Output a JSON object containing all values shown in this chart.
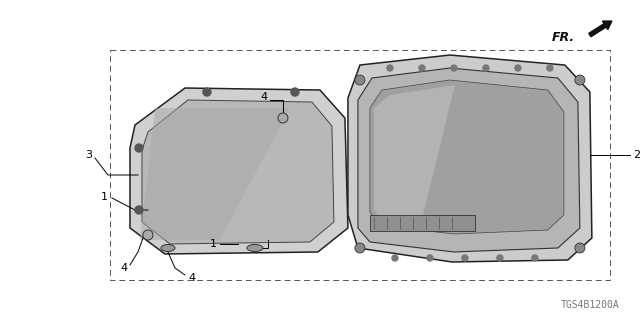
{
  "bg_color": "#ffffff",
  "line_color": "#000000",
  "diagram_code": "TGS4B1200A",
  "fr_label": "FR.",
  "fig_width": 6.4,
  "fig_height": 3.2,
  "dpi": 100
}
